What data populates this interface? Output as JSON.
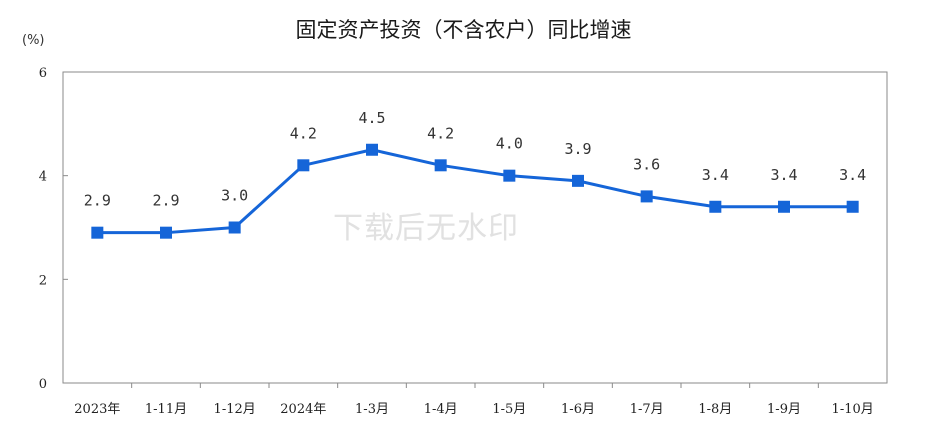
{
  "chart_data": {
    "type": "line",
    "title": "固定资产投资（不含农户）同比增速",
    "y_unit": "(%)",
    "categories": [
      "2023年",
      "1-11月",
      "1-12月",
      "2024年",
      "1-3月",
      "1-4月",
      "1-5月",
      "1-6月",
      "1-7月",
      "1-8月",
      "1-9月",
      "1-10月"
    ],
    "series": [
      {
        "values": [
          2.9,
          2.9,
          3.0,
          4.2,
          4.5,
          4.2,
          4.0,
          3.9,
          3.6,
          3.4,
          3.4,
          3.4
        ],
        "labels": [
          "2.9",
          "2.9",
          "3.0",
          "4.2",
          "4.5",
          "4.2",
          "4.0",
          "3.9",
          "3.6",
          "3.4",
          "3.4",
          "3.4"
        ],
        "color": "#1565d8"
      }
    ],
    "ylim": [
      0,
      6
    ],
    "yticks": [
      "0",
      "2",
      "4",
      "6"
    ],
    "grid": false,
    "legend": "none"
  },
  "watermark": "下载后无水印"
}
